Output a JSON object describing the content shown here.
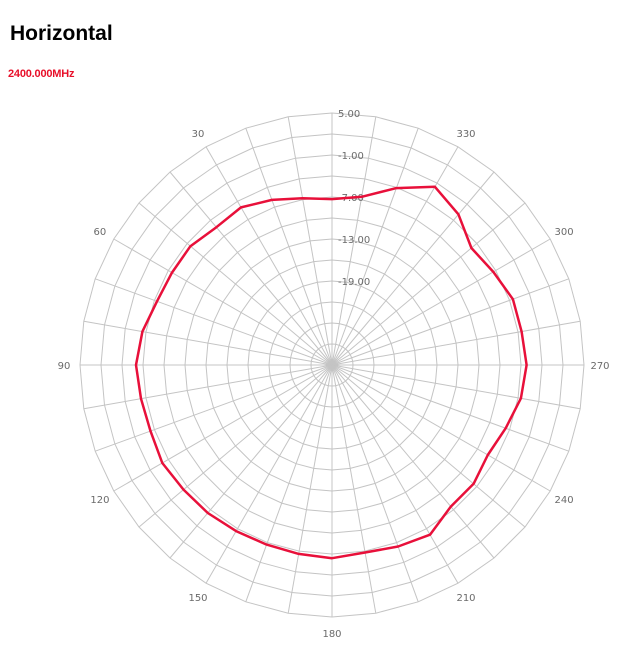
{
  "chart_data": {
    "type": "polar-line",
    "title": "Horizontal",
    "series": [
      {
        "name": "2400.000MHz",
        "color": "#e8103a",
        "angles": [
          0,
          10,
          20,
          30,
          40,
          50,
          60,
          70,
          80,
          90,
          100,
          110,
          120,
          130,
          140,
          150,
          160,
          170,
          180,
          190,
          200,
          210,
          220,
          230,
          240,
          250,
          260,
          270,
          280,
          290,
          300,
          310,
          320,
          330,
          340,
          350
        ],
        "values": [
          -7.3,
          -6.8,
          -5.9,
          -5.0,
          -5.3,
          -4.6,
          -4.6,
          -4.4,
          -3.5,
          -3.0,
          -3.3,
          -3.4,
          -3.0,
          -3.3,
          -3.4,
          -3.6,
          -3.7,
          -3.6,
          -3.4,
          -3.8,
          -3.4,
          -3.0,
          -4.6,
          -4.6,
          -5.3,
          -4.6,
          -3.6,
          -3.2,
          -3.5,
          -3.5,
          -4.4,
          -5.0,
          -2.9,
          -1.6,
          -4.1,
          -6.6
        ]
      }
    ],
    "angle_tick_labels": [
      "30",
      "60",
      "90",
      "120",
      "150",
      "180",
      "210",
      "240",
      "270",
      "300",
      "330"
    ],
    "angle_range": [
      0,
      360
    ],
    "angle_step": 10,
    "angle_direction": "counterclockwise",
    "zero_angle": "top",
    "radial_tick_labels": [
      "5.00",
      "-1.00",
      "-7.00",
      "-13.00",
      "-19.00"
    ],
    "radial_ticks": [
      5,
      -1,
      -7,
      -13,
      -19
    ],
    "radial_range": [
      -31,
      5
    ],
    "radial_step": 3,
    "grid": true
  },
  "colors": {
    "grid": "#c4c4c4",
    "tick_text": "#6a6a6a",
    "series": "#e8103a"
  }
}
